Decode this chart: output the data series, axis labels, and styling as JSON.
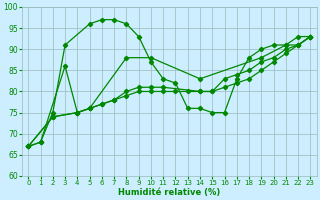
{
  "xlabel": "Humidité relative (%)",
  "background_color": "#cceeff",
  "line_color": "#008800",
  "ylim": [
    60,
    100
  ],
  "xlim": [
    -0.5,
    23.5
  ],
  "yticks": [
    60,
    65,
    70,
    75,
    80,
    85,
    90,
    95,
    100
  ],
  "xticks": [
    0,
    1,
    2,
    3,
    4,
    5,
    6,
    7,
    8,
    9,
    10,
    11,
    12,
    13,
    14,
    15,
    16,
    17,
    18,
    19,
    20,
    21,
    22,
    23
  ],
  "line1_x": [
    0,
    1,
    2,
    3,
    5,
    6,
    7,
    8,
    9,
    10,
    11,
    12,
    13,
    14,
    15,
    16,
    17,
    18,
    19,
    20,
    21,
    22,
    23
  ],
  "line1_y": [
    67,
    68,
    75,
    91,
    96,
    97,
    97,
    96,
    93,
    87,
    83,
    82,
    76,
    76,
    75,
    75,
    83,
    88,
    90,
    91,
    91,
    93,
    93
  ],
  "line2_x": [
    0,
    1,
    3,
    4,
    5,
    8,
    10,
    14,
    19,
    21,
    22,
    23
  ],
  "line2_y": [
    67,
    68,
    86,
    75,
    76,
    88,
    88,
    83,
    88,
    91,
    91,
    93
  ],
  "line3_x": [
    0,
    2,
    4,
    5,
    6,
    7,
    8,
    9,
    10,
    11,
    14,
    15,
    16,
    17,
    18,
    19,
    20,
    21,
    22,
    23
  ],
  "line3_y": [
    67,
    74,
    75,
    76,
    77,
    78,
    80,
    81,
    81,
    81,
    80,
    80,
    83,
    84,
    85,
    87,
    88,
    90,
    91,
    93
  ],
  "line4_x": [
    0,
    2,
    4,
    5,
    6,
    7,
    8,
    9,
    10,
    11,
    12,
    13,
    14,
    15,
    16,
    17,
    18,
    19,
    20,
    21,
    22,
    23
  ],
  "line4_y": [
    67,
    74,
    75,
    76,
    77,
    78,
    79,
    80,
    80,
    80,
    80,
    80,
    80,
    80,
    81,
    82,
    83,
    85,
    87,
    89,
    91,
    93
  ]
}
